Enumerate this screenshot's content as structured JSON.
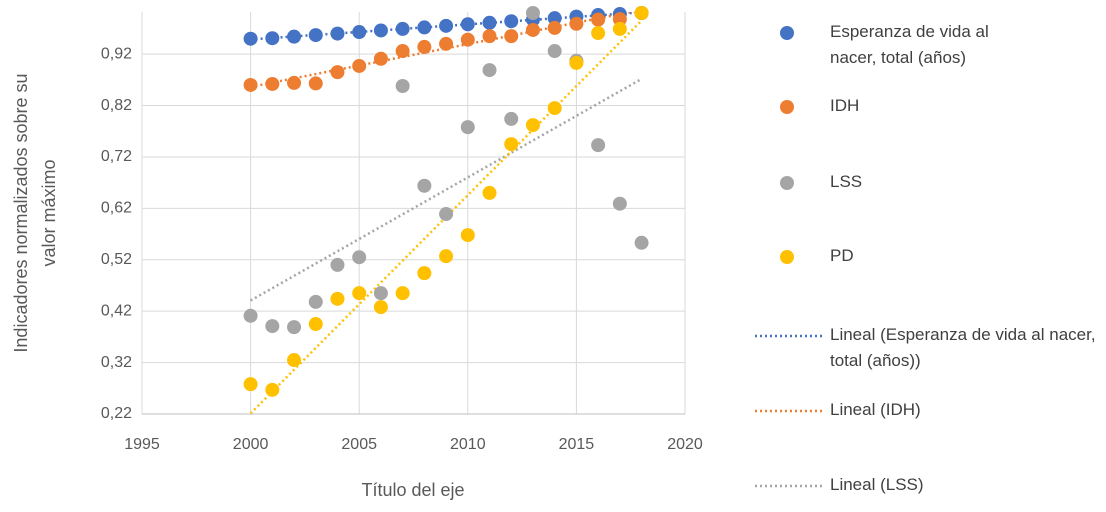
{
  "chart_data": {
    "type": "scatter",
    "xlabel": "Título del eje",
    "ylabel": [
      "Indicadores normalizados sobre su",
      "valor máximo"
    ],
    "x": [
      2000,
      2001,
      2002,
      2003,
      2004,
      2005,
      2006,
      2007,
      2008,
      2009,
      2010,
      2011,
      2012,
      2013,
      2014,
      2015,
      2016,
      2017,
      2018
    ],
    "series": [
      {
        "name": "Esperanza de vida al nacer, total (años)",
        "color": "#4472c4",
        "trendline": true,
        "trendline_name": "Lineal (Esperanza de vida al nacer, total (años))",
        "values": [
          0.95,
          0.951,
          0.954,
          0.957,
          0.96,
          0.963,
          0.966,
          0.969,
          0.972,
          0.975,
          0.978,
          0.981,
          0.984,
          0.987,
          0.99,
          0.993,
          0.996,
          0.998,
          1.0
        ]
      },
      {
        "name": "IDH",
        "color": "#ed7d31",
        "trendline": true,
        "trendline_name": "Lineal (IDH)",
        "values": [
          0.86,
          0.862,
          0.864,
          0.863,
          0.885,
          0.897,
          0.911,
          0.926,
          0.934,
          0.94,
          0.948,
          0.955,
          0.955,
          0.967,
          0.971,
          0.979,
          0.987,
          0.988,
          1.0
        ]
      },
      {
        "name": "LSS",
        "color": "#a5a5a5",
        "trendline": true,
        "trendline_name": "Lineal (LSS)",
        "values": [
          0.411,
          0.391,
          0.389,
          0.438,
          0.51,
          0.525,
          0.455,
          0.858,
          0.664,
          0.609,
          0.778,
          0.889,
          0.794,
          1.0,
          0.926,
          0.907,
          0.743,
          0.629,
          0.553
        ]
      },
      {
        "name": "PD",
        "color": "#ffc000",
        "trendline": true,
        "values": [
          0.278,
          0.267,
          0.325,
          0.395,
          0.444,
          0.455,
          0.428,
          0.455,
          0.494,
          0.527,
          0.568,
          0.65,
          0.745,
          0.782,
          0.815,
          0.903,
          0.961,
          0.969,
          1.0
        ]
      }
    ],
    "xlim": [
      1995,
      2020
    ],
    "xticks": [
      1995,
      2000,
      2005,
      2010,
      2015,
      2020
    ],
    "ylim": [
      0.22,
      1.0
    ],
    "yticks": [
      {
        "value": 0.22,
        "label": "0,22"
      },
      {
        "value": 0.32,
        "label": "0,32"
      },
      {
        "value": 0.42,
        "label": "0,42"
      },
      {
        "value": 0.52,
        "label": "0,52"
      },
      {
        "value": 0.62,
        "label": "0,62"
      },
      {
        "value": 0.72,
        "label": "0,72"
      },
      {
        "value": 0.82,
        "label": "0,82"
      },
      {
        "value": 0.92,
        "label": "0,92"
      }
    ],
    "grid": true
  }
}
